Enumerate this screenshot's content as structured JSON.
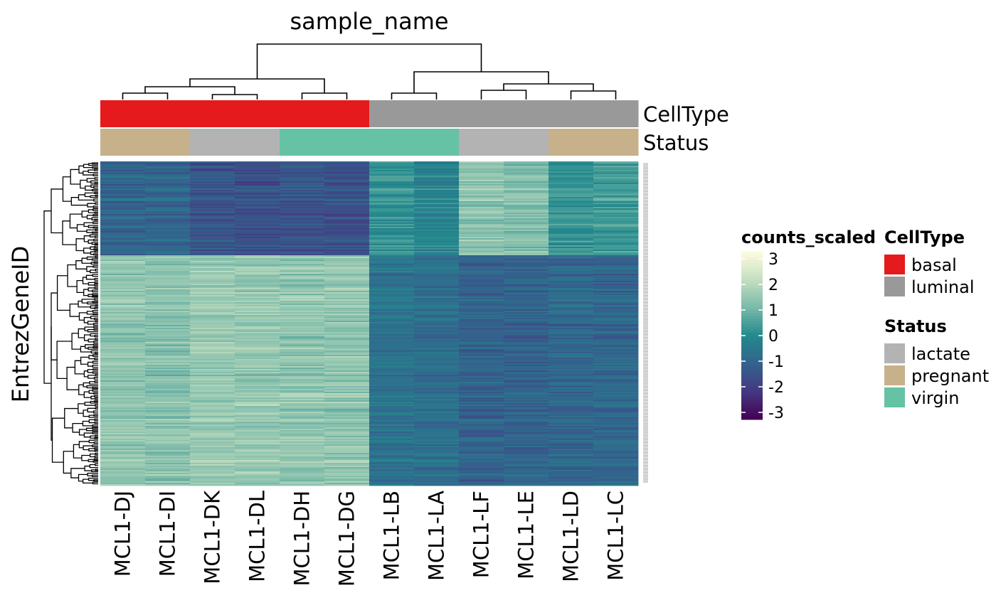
{
  "chart_data": {
    "type": "heatmap",
    "column_title": "sample_name",
    "row_title": "EntrezGeneID",
    "columns": [
      "MCL1-DJ",
      "MCL1-DI",
      "MCL1-DK",
      "MCL1-DL",
      "MCL1-DH",
      "MCL1-DG",
      "MCL1-LB",
      "MCL1-LA",
      "MCL1-LF",
      "MCL1-LE",
      "MCL1-LD",
      "MCL1-LC"
    ],
    "annotations": [
      {
        "name": "CellType",
        "values": [
          "basal",
          "basal",
          "basal",
          "basal",
          "basal",
          "basal",
          "luminal",
          "luminal",
          "luminal",
          "luminal",
          "luminal",
          "luminal"
        ]
      },
      {
        "name": "Status",
        "values": [
          "pregnant",
          "pregnant",
          "lactate",
          "lactate",
          "virgin",
          "virgin",
          "virgin",
          "virgin",
          "lactate",
          "lactate",
          "pregnant",
          "pregnant"
        ]
      }
    ],
    "row_clusters": [
      {
        "share": 0.29,
        "means": [
          -0.9,
          -0.8,
          -1.3,
          -1.4,
          -1.3,
          -1.4,
          0.2,
          -0.1,
          1.3,
          1.2,
          0.3,
          0.4
        ]
      },
      {
        "share": 0.71,
        "means": [
          1.3,
          1.2,
          1.4,
          1.4,
          1.3,
          1.3,
          -0.6,
          -0.7,
          -1.0,
          -1.0,
          -0.9,
          -0.9
        ]
      }
    ],
    "color_scale": {
      "name": "counts_scaled",
      "min": -3,
      "max": 3,
      "ticks": [
        3,
        2,
        1,
        0,
        -1,
        -2,
        -3
      ],
      "tick_labels": [
        "3",
        "2",
        "1",
        "0",
        "-1",
        "-2",
        "-3"
      ],
      "palette": [
        "#440154",
        "#453781",
        "#33638d",
        "#238a8d",
        "#79b9a9",
        "#c5dfc0",
        "#fffbe0"
      ]
    },
    "legends": [
      {
        "title": "CellType",
        "items": [
          {
            "label": "basal",
            "color": "#e41a1c"
          },
          {
            "label": "luminal",
            "color": "#999999"
          }
        ]
      },
      {
        "title": "Status",
        "items": [
          {
            "label": "lactate",
            "color": "#b3b3b3"
          },
          {
            "label": "pregnant",
            "color": "#c6b18b"
          },
          {
            "label": "virgin",
            "color": "#66c2a5"
          }
        ]
      }
    ]
  }
}
